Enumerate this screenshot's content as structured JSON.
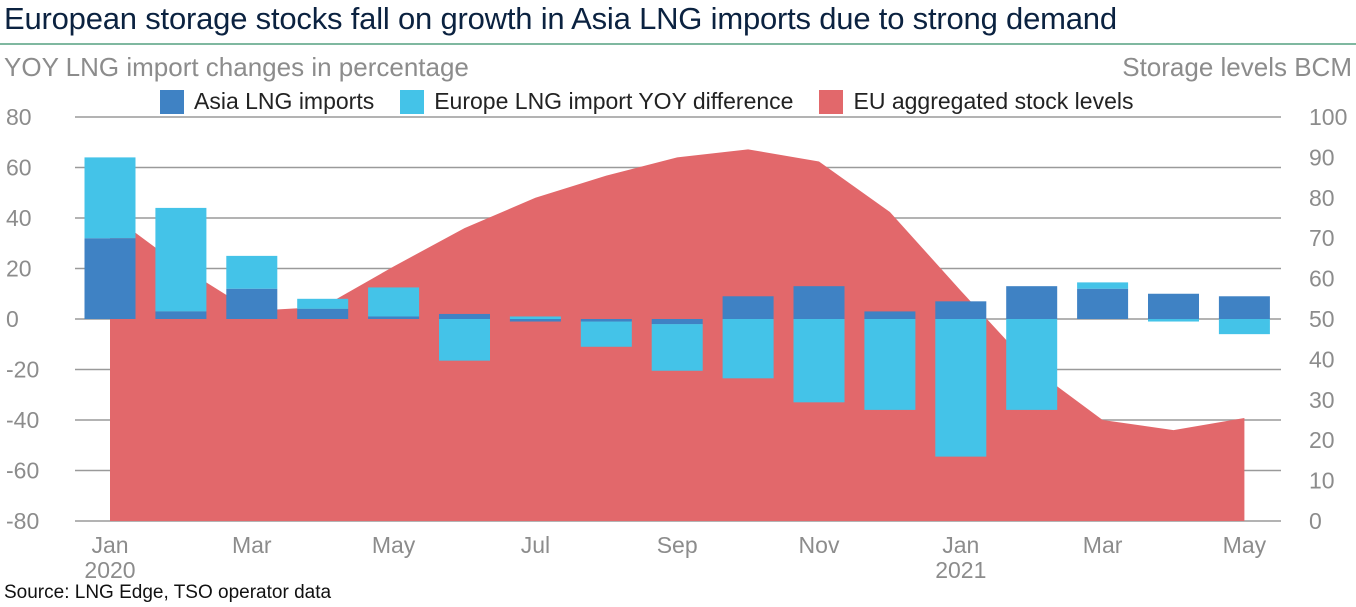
{
  "header": {
    "title": "European storage stocks fall on growth in Asia LNG imports due to strong demand",
    "left_axis_title": "YOY LNG import changes in percentage",
    "right_axis_title": "Storage levels BCM"
  },
  "footer": {
    "source": "Source: LNG Edge, TSO operator data"
  },
  "colors": {
    "asia": "#3f82c4",
    "europe": "#44c3e8",
    "storage": "#e2686b",
    "grid": "#9a9a9a",
    "title": "#0b2240",
    "axis_text": "#8c8c8c",
    "rule": "#7fb8a0"
  },
  "chart_data": {
    "type": "bar",
    "title": "European storage stocks fall on growth in Asia LNG imports due to strong demand",
    "xlabel": "",
    "ylabel": "YOY LNG import changes in percentage",
    "y2label": "Storage levels BCM",
    "ylim": [
      -80,
      80
    ],
    "y2lim": [
      0,
      100
    ],
    "yticks": [
      80,
      60,
      40,
      20,
      0,
      -20,
      -40,
      -60,
      -80
    ],
    "y2ticks": [
      100,
      90,
      80,
      70,
      60,
      50,
      40,
      30,
      20,
      10,
      0
    ],
    "grid": true,
    "legend_position": "top",
    "categories": [
      "Jan 2020",
      "Feb 2020",
      "Mar 2020",
      "Apr 2020",
      "May 2020",
      "Jun 2020",
      "Jul 2020",
      "Aug 2020",
      "Sep 2020",
      "Oct 2020",
      "Nov 2020",
      "Dec 2020",
      "Jan 2021",
      "Feb 2021",
      "Mar 2021",
      "Apr 2021",
      "May 2021"
    ],
    "xtick_labels": [
      {
        "index": 0,
        "line1": "Jan",
        "line2": "2020"
      },
      {
        "index": 2,
        "line1": "Mar",
        "line2": ""
      },
      {
        "index": 4,
        "line1": "May",
        "line2": ""
      },
      {
        "index": 6,
        "line1": "Jul",
        "line2": ""
      },
      {
        "index": 8,
        "line1": "Sep",
        "line2": ""
      },
      {
        "index": 10,
        "line1": "Nov",
        "line2": ""
      },
      {
        "index": 12,
        "line1": "Jan",
        "line2": "2021"
      },
      {
        "index": 14,
        "line1": "Mar",
        "line2": ""
      },
      {
        "index": 16,
        "line1": "May",
        "line2": ""
      }
    ],
    "series": [
      {
        "name": "Asia LNG imports",
        "type": "stacked-bar",
        "axis": "left",
        "values": [
          32,
          3,
          12,
          4,
          1,
          2,
          -1,
          -1,
          -2,
          9,
          13,
          3,
          7,
          13,
          12,
          10,
          9
        ]
      },
      {
        "name": "Europe LNG import YOY difference",
        "type": "stacked-bar",
        "axis": "left",
        "values": [
          32,
          41,
          13,
          4,
          11.5,
          -16.5,
          1,
          -10,
          -18.5,
          -23.5,
          -33,
          -36,
          -54.5,
          -36,
          2.5,
          -1,
          -6
        ]
      },
      {
        "name": "EU aggregated stock levels",
        "type": "area",
        "axis": "right",
        "values": [
          76,
          63,
          52,
          53,
          63,
          72.5,
          80,
          85.5,
          90,
          92,
          89,
          76.5,
          57,
          38,
          25,
          22.5,
          25.5
        ]
      }
    ]
  }
}
